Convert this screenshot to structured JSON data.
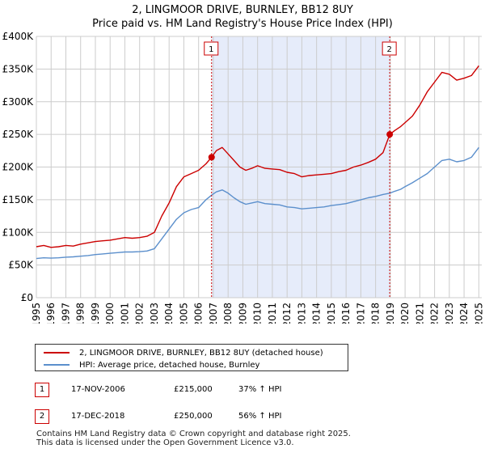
{
  "chart_data": {
    "type": "line",
    "title": "2, LINGMOOR DRIVE, BURNLEY, BB12 8UY",
    "subtitle": "Price paid vs. HM Land Registry's House Price Index (HPI)",
    "xlabel": "",
    "ylabel": "",
    "xlim": [
      1995,
      2025.2
    ],
    "ylim": [
      0,
      400000
    ],
    "x_ticks": [
      "1995",
      "1996",
      "1997",
      "1998",
      "1999",
      "2000",
      "2001",
      "2002",
      "2003",
      "2004",
      "2005",
      "2006",
      "2007",
      "2008",
      "2009",
      "2010",
      "2011",
      "2012",
      "2013",
      "2014",
      "2015",
      "2016",
      "2017",
      "2018",
      "2019",
      "2020",
      "2021",
      "2022",
      "2023",
      "2024",
      "2025"
    ],
    "y_ticks": [
      {
        "value": 0,
        "label": "£0"
      },
      {
        "value": 50000,
        "label": "£50K"
      },
      {
        "value": 100000,
        "label": "£100K"
      },
      {
        "value": 150000,
        "label": "£150K"
      },
      {
        "value": 200000,
        "label": "£200K"
      },
      {
        "value": 250000,
        "label": "£250K"
      },
      {
        "value": 300000,
        "label": "£300K"
      },
      {
        "value": 350000,
        "label": "£350K"
      },
      {
        "value": 400000,
        "label": "£400K"
      }
    ],
    "grid": true,
    "shade_range": [
      2006.88,
      2018.96
    ],
    "series": [
      {
        "name": "2, LINGMOOR DRIVE, BURNLEY, BB12 8UY (detached house)",
        "color": "#cc0000",
        "x": [
          1995,
          1995.5,
          1996,
          1996.5,
          1997,
          1997.5,
          1998,
          1998.5,
          1999,
          1999.5,
          2000,
          2000.5,
          2001,
          2001.5,
          2002,
          2002.5,
          2003,
          2003.5,
          2004,
          2004.5,
          2005,
          2005.5,
          2006,
          2006.5,
          2006.88,
          2007.2,
          2007.6,
          2008,
          2008.4,
          2008.8,
          2009.2,
          2009.6,
          2010,
          2010.5,
          2011,
          2011.5,
          2012,
          2012.5,
          2013,
          2013.5,
          2014,
          2014.5,
          2015,
          2015.5,
          2016,
          2016.5,
          2017,
          2017.5,
          2018,
          2018.5,
          2018.96,
          2019.3,
          2019.7,
          2020,
          2020.5,
          2021,
          2021.5,
          2022,
          2022.5,
          2023,
          2023.5,
          2024,
          2024.5,
          2025
        ],
        "values": [
          78000,
          80000,
          77000,
          78000,
          80000,
          79000,
          82000,
          84000,
          86000,
          87000,
          88000,
          90000,
          92000,
          91000,
          92000,
          94000,
          100000,
          125000,
          145000,
          170000,
          185000,
          190000,
          195000,
          205000,
          215000,
          225000,
          230000,
          220000,
          210000,
          200000,
          195000,
          198000,
          202000,
          198000,
          197000,
          196000,
          192000,
          190000,
          185000,
          187000,
          188000,
          189000,
          190000,
          193000,
          195000,
          200000,
          203000,
          207000,
          212000,
          222000,
          250000,
          256000,
          262000,
          268000,
          278000,
          295000,
          315000,
          330000,
          345000,
          342000,
          333000,
          336000,
          340000,
          355000
        ]
      },
      {
        "name": "HPI: Average price, detached house, Burnley",
        "color": "#5b8fcc",
        "x": [
          1995,
          1995.5,
          1996,
          1996.5,
          1997,
          1997.5,
          1998,
          1998.5,
          1999,
          1999.5,
          2000,
          2000.5,
          2001,
          2001.5,
          2002,
          2002.5,
          2003,
          2003.5,
          2004,
          2004.5,
          2005,
          2005.5,
          2006,
          2006.5,
          2006.88,
          2007.2,
          2007.6,
          2008,
          2008.4,
          2008.8,
          2009.2,
          2009.6,
          2010,
          2010.5,
          2011,
          2011.5,
          2012,
          2012.5,
          2013,
          2013.5,
          2014,
          2014.5,
          2015,
          2015.5,
          2016,
          2016.5,
          2017,
          2017.5,
          2018,
          2018.5,
          2018.96,
          2019.3,
          2019.7,
          2020,
          2020.5,
          2021,
          2021.5,
          2022,
          2022.5,
          2023,
          2023.5,
          2024,
          2024.5,
          2025
        ],
        "values": [
          60000,
          61000,
          60500,
          61000,
          62000,
          62500,
          63500,
          64500,
          66000,
          67000,
          68000,
          69000,
          70000,
          70000,
          70500,
          71500,
          75000,
          90000,
          105000,
          120000,
          130000,
          135000,
          138000,
          150000,
          157000,
          162000,
          165000,
          160000,
          153000,
          147000,
          143000,
          145000,
          147000,
          144000,
          143000,
          142000,
          139000,
          138000,
          136000,
          137000,
          138000,
          139000,
          141000,
          142500,
          144000,
          147000,
          150000,
          153000,
          155000,
          158000,
          160000,
          163000,
          166000,
          170000,
          176000,
          183000,
          190000,
          200000,
          210000,
          212000,
          208000,
          210000,
          215000,
          230000
        ]
      }
    ],
    "markers": [
      {
        "label": "1",
        "x": 2006.88,
        "y": 215000
      },
      {
        "label": "2",
        "x": 2018.96,
        "y": 250000
      }
    ]
  },
  "legend": {
    "property_label": "2, LINGMOOR DRIVE, BURNLEY, BB12 8UY (detached house)",
    "hpi_label": "HPI: Average price, detached house, Burnley"
  },
  "sales": [
    {
      "num": "1",
      "date": "17-NOV-2006",
      "price": "£215,000",
      "hpi": "37% ↑ HPI"
    },
    {
      "num": "2",
      "date": "17-DEC-2018",
      "price": "£250,000",
      "hpi": "56% ↑ HPI"
    }
  ],
  "footer": {
    "line1": "Contains HM Land Registry data © Crown copyright and database right 2025.",
    "line2": "This data is licensed under the Open Government Licence v3.0."
  },
  "colors": {
    "property": "#cc0000",
    "hpi": "#5b8fcc",
    "shade": "#e6ecfa",
    "grid": "#cccccc",
    "marker_box_border": "#cc0000"
  }
}
